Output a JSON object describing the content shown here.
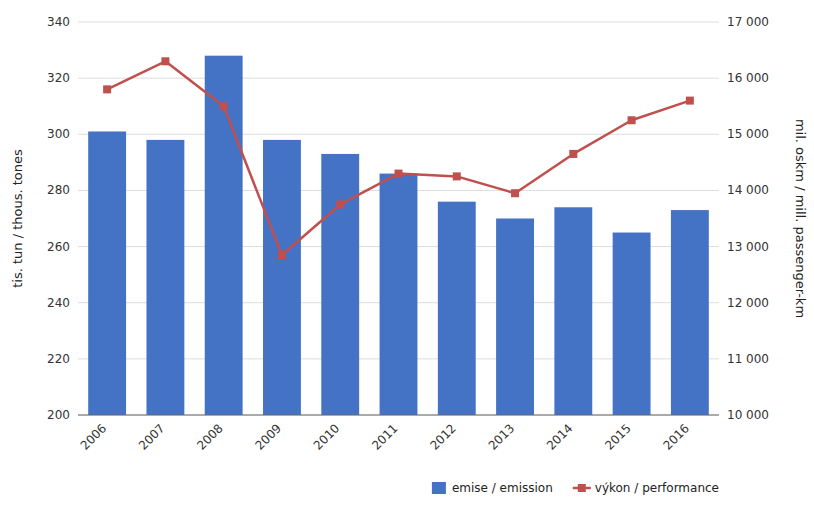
{
  "chart_data": {
    "type": "bar",
    "categories": [
      "2006",
      "2007",
      "2008",
      "2009",
      "2010",
      "2011",
      "2012",
      "2013",
      "2014",
      "2015",
      "2016"
    ],
    "y_label": "tis. tun / thous. tones",
    "y2_label": "mil. oskm / mill. passenger-km",
    "ylim": [
      200,
      340
    ],
    "yticks": [
      200,
      220,
      240,
      260,
      280,
      300,
      320,
      340
    ],
    "y2lim": [
      10000,
      17000
    ],
    "y2ticks": [
      {
        "value": 10000,
        "label": "10 000"
      },
      {
        "value": 11000,
        "label": "11 000"
      },
      {
        "value": 12000,
        "label": "12 000"
      },
      {
        "value": 13000,
        "label": "13 000"
      },
      {
        "value": 14000,
        "label": "14 000"
      },
      {
        "value": 15000,
        "label": "15 000"
      },
      {
        "value": 16000,
        "label": "16 000"
      },
      {
        "value": 17000,
        "label": "17 000"
      }
    ],
    "grid": true,
    "legend": "lower right",
    "series": [
      {
        "name": "emise / emission",
        "type": "bar",
        "color": "#4472C4",
        "values": [
          301,
          298,
          328,
          298,
          293,
          286,
          276,
          270,
          274,
          265,
          273
        ]
      },
      {
        "name": "výkon / performance",
        "type": "line",
        "color": "#C0504D",
        "marker": "square",
        "axis": "y2",
        "values": [
          15800,
          16300,
          15500,
          12850,
          13750,
          14300,
          14250,
          13950,
          14650,
          15250,
          15600
        ]
      }
    ]
  }
}
